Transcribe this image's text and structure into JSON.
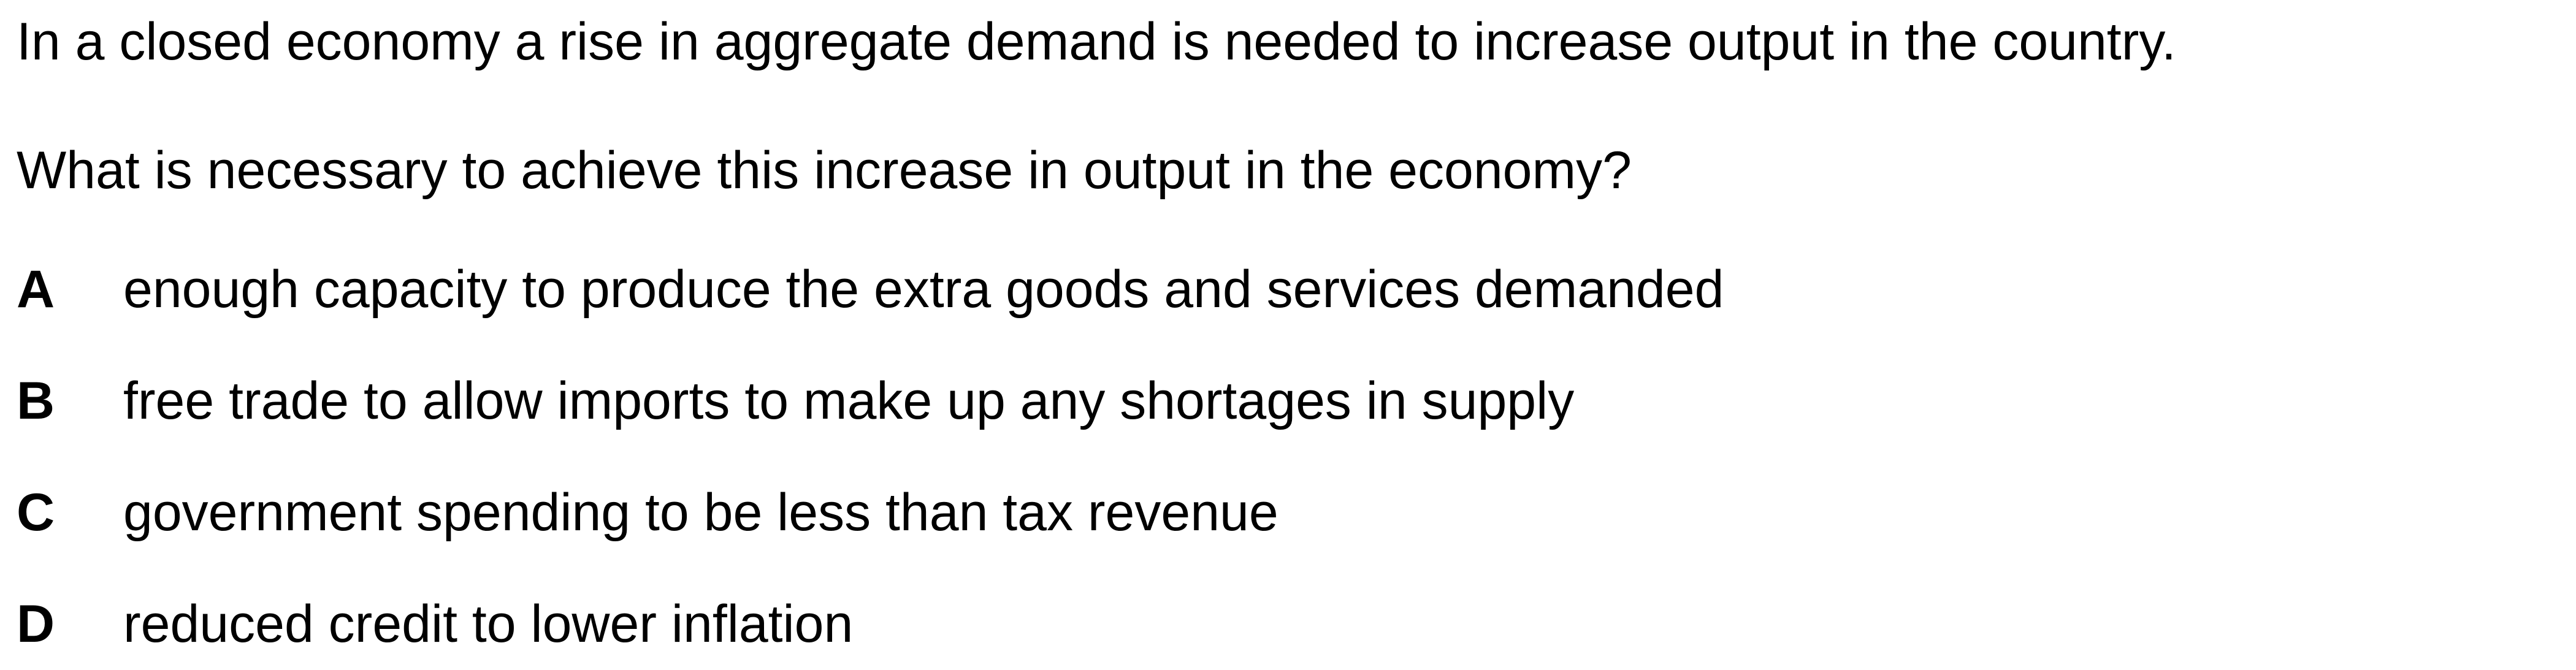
{
  "stem": "In a closed economy a rise in aggregate demand is needed to increase output in the country.",
  "question": "What is necessary to achieve this increase in output in the economy?",
  "options": [
    {
      "letter": "A",
      "text": "enough capacity to produce the extra goods and services demanded"
    },
    {
      "letter": "B",
      "text": "free trade to allow imports to make up any shortages in supply"
    },
    {
      "letter": "C",
      "text": "government spending to be less than tax revenue"
    },
    {
      "letter": "D",
      "text": "reduced credit to lower inflation"
    }
  ]
}
